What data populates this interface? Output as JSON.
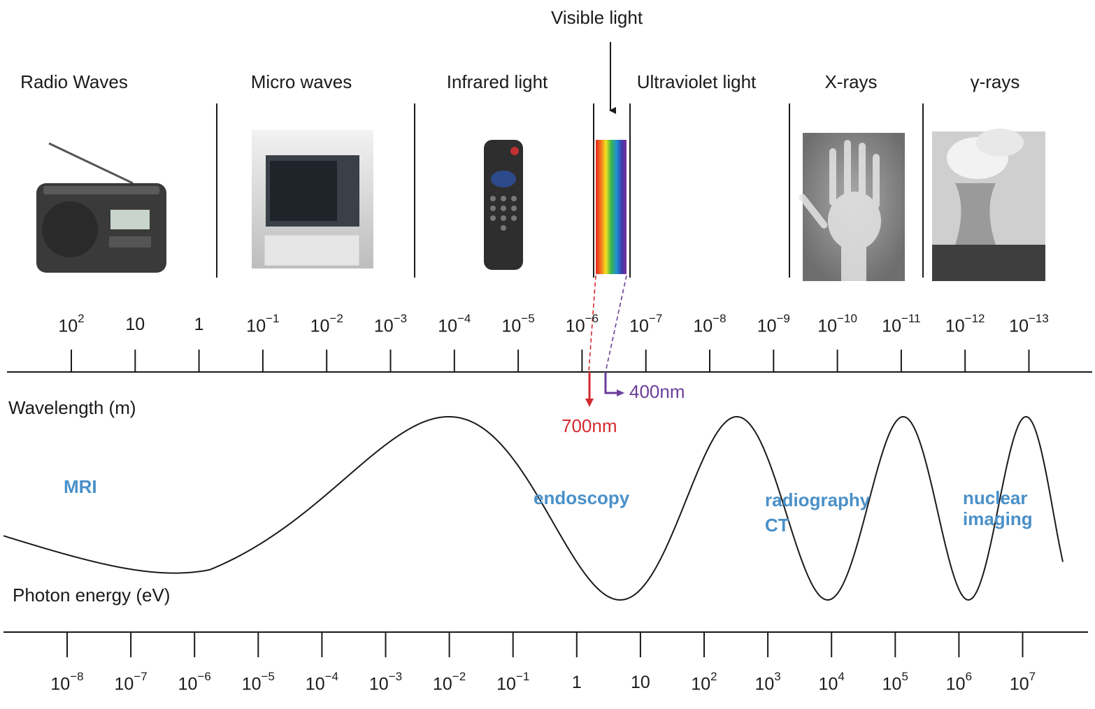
{
  "bands": [
    {
      "name": "radio",
      "label": "Radio Waves"
    },
    {
      "name": "microwave",
      "label": "Micro waves"
    },
    {
      "name": "infrared",
      "label": "Infrared light"
    },
    {
      "name": "ultraviolet",
      "label": "Ultraviolet light"
    },
    {
      "name": "xray",
      "label": "X-rays"
    },
    {
      "name": "gamma",
      "label": "γ-rays"
    }
  ],
  "visible": {
    "label": "Visible light",
    "red_label": "700nm",
    "violet_label": "400nm"
  },
  "wavelength_axis": {
    "label": "Wavelength (m)",
    "ticks": [
      {
        "base": "10",
        "exp": "2"
      },
      {
        "base": "10",
        "exp": ""
      },
      {
        "base": "1",
        "exp": ""
      },
      {
        "base": "10",
        "exp": "−1"
      },
      {
        "base": "10",
        "exp": "−2"
      },
      {
        "base": "10",
        "exp": "−3"
      },
      {
        "base": "10",
        "exp": "−4"
      },
      {
        "base": "10",
        "exp": "−5"
      },
      {
        "base": "10",
        "exp": "−6"
      },
      {
        "base": "10",
        "exp": "−7"
      },
      {
        "base": "10",
        "exp": "−8"
      },
      {
        "base": "10",
        "exp": "−9"
      },
      {
        "base": "10",
        "exp": "−10"
      },
      {
        "base": "10",
        "exp": "−11"
      },
      {
        "base": "10",
        "exp": "−12"
      },
      {
        "base": "10",
        "exp": "−13"
      }
    ]
  },
  "energy_axis": {
    "label": "Photon energy (eV)",
    "ticks": [
      {
        "base": "10",
        "exp": "−8"
      },
      {
        "base": "10",
        "exp": "−7"
      },
      {
        "base": "10",
        "exp": "−6"
      },
      {
        "base": "10",
        "exp": "−5"
      },
      {
        "base": "10",
        "exp": "−4"
      },
      {
        "base": "10",
        "exp": "−3"
      },
      {
        "base": "10",
        "exp": "−2"
      },
      {
        "base": "10",
        "exp": "−1"
      },
      {
        "base": "1",
        "exp": ""
      },
      {
        "base": "10",
        "exp": ""
      },
      {
        "base": "10",
        "exp": "2"
      },
      {
        "base": "10",
        "exp": "3"
      },
      {
        "base": "10",
        "exp": "4"
      },
      {
        "base": "10",
        "exp": "5"
      },
      {
        "base": "10",
        "exp": "6"
      },
      {
        "base": "10",
        "exp": "7"
      }
    ]
  },
  "applications": {
    "mri": "MRI",
    "endoscopy": "endoscopy",
    "radiography_line1": "radiography",
    "radiography_line2": "CT",
    "nuclear_line1": "nuclear",
    "nuclear_line2": "imaging"
  },
  "colors": {
    "red": "#d42a30",
    "violet": "#6a3d9a",
    "application": "#4a90c8"
  }
}
